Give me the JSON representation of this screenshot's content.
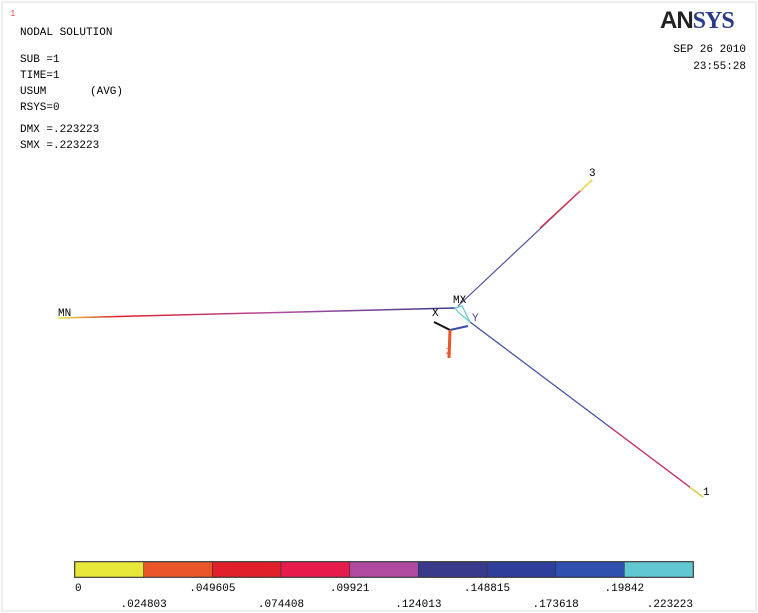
{
  "header": {
    "window_number": "1",
    "title": "NODAL SOLUTION",
    "info": [
      "SUB =1",
      "TIME=1",
      "USUM",
      "RSYS=0",
      "DMX =.223223",
      "SMX =.223223"
    ],
    "avg": "(AVG)",
    "logo_bold": "AN",
    "logo_serif": "SYS",
    "date": "SEP 26 2010",
    "time": "23:55:28"
  },
  "model": {
    "min_label": "MN",
    "max_label": "MX",
    "node_3": "3",
    "node_1": "1",
    "axis_x": "X",
    "axis_y": "Y",
    "axis_z": "Z"
  },
  "legend": {
    "colors": [
      "#e8e83a",
      "#e8562a",
      "#e0202a",
      "#e61c4c",
      "#b04aa0",
      "#3a3a8c",
      "#2e3e9a",
      "#3050b0",
      "#60c8d0"
    ],
    "upper_labels": [
      "0",
      ".049605",
      ".09921",
      ".148815",
      ".19842"
    ],
    "lower_labels": [
      ".024803",
      ".074408",
      ".124013",
      ".173618",
      ".223223"
    ]
  }
}
